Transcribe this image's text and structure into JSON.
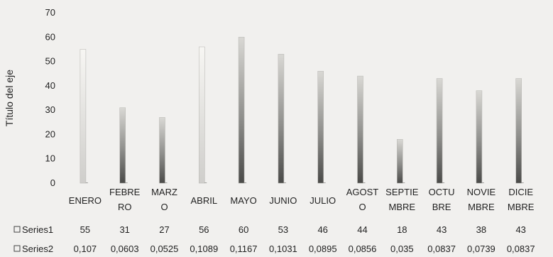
{
  "chart_data": {
    "type": "bar",
    "ylabel": "Título del eje",
    "ylim": [
      0,
      70
    ],
    "yticks": [
      0,
      10,
      20,
      30,
      40,
      50,
      60,
      70
    ],
    "grid": false,
    "categories": [
      [
        "ENERO"
      ],
      [
        "FEBRE",
        "RO"
      ],
      [
        "MARZ",
        "O"
      ],
      [
        "ABRIL"
      ],
      [
        "MAYO"
      ],
      [
        "JUNIO"
      ],
      [
        "JULIO"
      ],
      [
        "AGOST",
        "O"
      ],
      [
        "SEPTIE",
        "MBRE"
      ],
      [
        "OCTU",
        "BRE"
      ],
      [
        "NOVIE",
        "MBRE"
      ],
      [
        "DICIE",
        "MBRE"
      ]
    ],
    "series": [
      {
        "name": "Series1",
        "values": [
          55,
          31,
          27,
          56,
          60,
          53,
          46,
          44,
          18,
          43,
          38,
          43
        ],
        "labels": [
          "55",
          "31",
          "27",
          "56",
          "60",
          "53",
          "46",
          "44",
          "18",
          "43",
          "38",
          "43"
        ],
        "plotted": true
      },
      {
        "name": "Series2",
        "values": [
          0.107,
          0.0603,
          0.0525,
          0.1089,
          0.1167,
          0.1031,
          0.0895,
          0.0856,
          0.035,
          0.0837,
          0.0739,
          0.0837
        ],
        "labels": [
          "0,107",
          "0,0603",
          "0,0525",
          "0,1089",
          "0,1167",
          "0,1031",
          "0,0895",
          "0,0856",
          "0,035",
          "0,0837",
          "0,0739",
          "0,0837"
        ],
        "plotted": true
      }
    ],
    "data_table": true,
    "colors": {
      "bar_light": "#f3f2ee",
      "bar_dark": "#5a5a58",
      "bar_mid": "#a8a8a5"
    }
  }
}
